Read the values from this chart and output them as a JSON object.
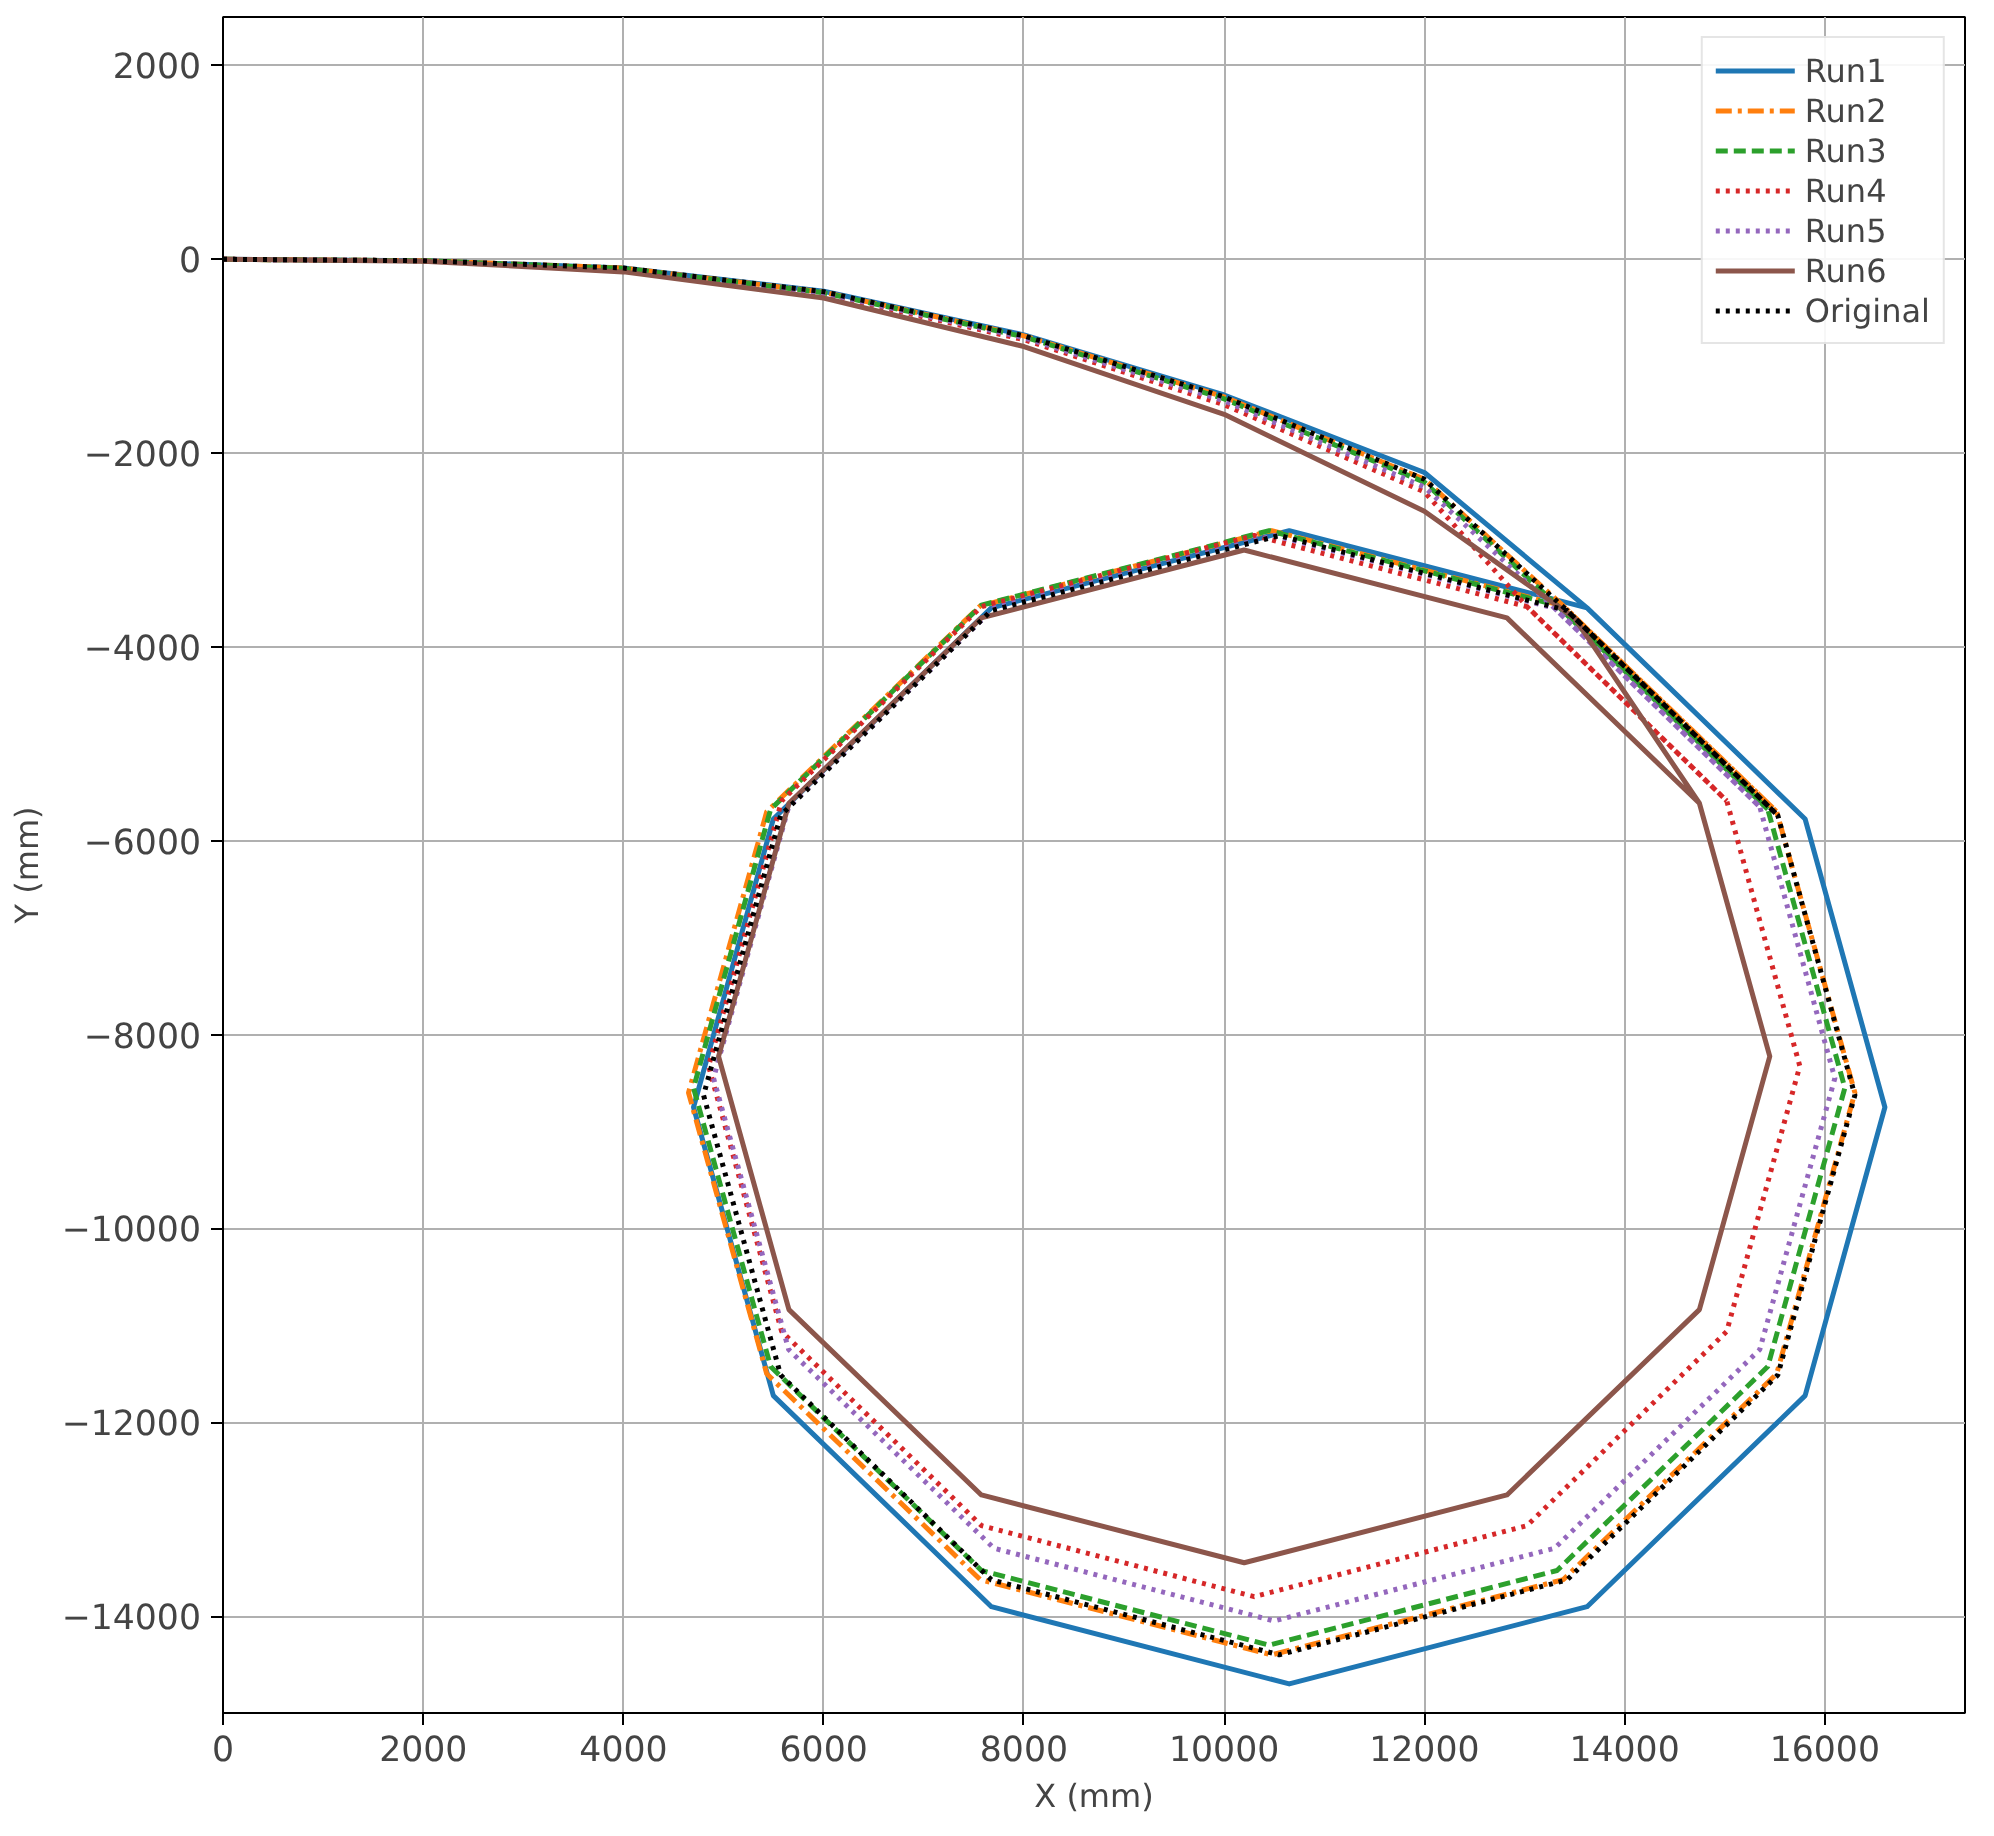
{
  "chart_data": {
    "type": "line",
    "xlabel": "X (mm)",
    "ylabel": "Y (mm)",
    "xlim": [
      0,
      17400
    ],
    "ylim": [
      -15000,
      2500
    ],
    "xticks": [
      0,
      2000,
      4000,
      6000,
      8000,
      10000,
      12000,
      14000,
      16000
    ],
    "yticks": [
      2000,
      0,
      {
        "value": -2000,
        "label": "−2000"
      },
      {
        "value": -4000,
        "label": "−4000"
      },
      {
        "value": -6000,
        "label": "−6000"
      },
      {
        "value": -8000,
        "label": "−8000"
      },
      {
        "value": -10000,
        "label": "−10000"
      },
      {
        "value": -12000,
        "label": "−12000"
      },
      {
        "value": -14000,
        "label": "−14000"
      }
    ],
    "grid": true,
    "legend": "top right",
    "series": [
      {
        "name": "Run1",
        "color": "#1f77b4",
        "line_style": "solid",
        "x": [
          0,
          2000,
          4000,
          6000,
          8000,
          10000,
          12000,
          13625,
          15803,
          16600,
          15803,
          13625,
          10650,
          7675,
          5497,
          4700,
          5497,
          7675,
          10650,
          13625,
          15803
        ],
        "values": [
          0,
          -15,
          -90,
          -330,
          -780,
          -1400,
          -2200,
          -3597,
          -5775,
          -8750,
          -11725,
          -13903,
          -14700,
          -13903,
          -11725,
          -8750,
          -5775,
          -3597,
          -2800,
          -3597,
          -5775
        ]
      },
      {
        "name": "Run2",
        "color": "#ff7f0e",
        "line_style": "dashdot",
        "x": [
          0,
          2000,
          4000,
          6000,
          8000,
          10000,
          12000,
          13388,
          15519,
          16300,
          15519,
          13388,
          10475,
          7563,
          5431,
          4650,
          5431,
          7563,
          10475,
          13388,
          15519
        ],
        "values": [
          0,
          -15,
          -90,
          -340,
          -790,
          -1420,
          -2270,
          -3577,
          -5700,
          -8600,
          -11500,
          -13623,
          -14400,
          -13623,
          -11500,
          -8600,
          -5700,
          -3577,
          -2800,
          -3577,
          -5700
        ]
      },
      {
        "name": "Run3",
        "color": "#2ca02c",
        "line_style": "dashed",
        "x": [
          0,
          2000,
          4000,
          6000,
          8000,
          10000,
          12000,
          13325,
          15430,
          16200,
          15430,
          13325,
          10450,
          7575,
          5470,
          4700,
          5470,
          7575,
          10450,
          13325,
          15430
        ],
        "values": [
          0,
          -15,
          -95,
          -345,
          -800,
          -1440,
          -2300,
          -3570,
          -5675,
          -8550,
          -11425,
          -13530,
          -14300,
          -13530,
          -11425,
          -8550,
          -5675,
          -3570,
          -2800,
          -3570,
          -5675
        ]
      },
      {
        "name": "Run4",
        "color": "#d62728",
        "line_style": "dotted",
        "x": [
          0,
          2000,
          4000,
          6000,
          8000,
          10000,
          12000,
          13025,
          15020,
          15750,
          15020,
          13025,
          10300,
          7575,
          5580,
          4850,
          5580,
          7575,
          10300,
          13025,
          15020
        ],
        "values": [
          0,
          -15,
          -100,
          -360,
          -830,
          -1500,
          -2400,
          -3584,
          -5588,
          -8325,
          -11063,
          -13066,
          -13800,
          -13066,
          -11063,
          -8325,
          -5588,
          -3584,
          -2850,
          -3584,
          -5588
        ]
      },
      {
        "name": "Run5",
        "color": "#9467bd",
        "line_style": "dotted",
        "x": [
          0,
          2000,
          4000,
          6000,
          8000,
          10000,
          12000,
          13300,
          15350,
          16100,
          15350,
          13300,
          10500,
          7700,
          5650,
          4900,
          5650,
          7700,
          10500,
          13300,
          15350
        ],
        "values": [
          0,
          -15,
          -95,
          -350,
          -810,
          -1460,
          -2350,
          -3600,
          -5650,
          -8450,
          -11250,
          -13300,
          -14050,
          -13300,
          -11250,
          -8450,
          -5650,
          -3600,
          -2850,
          -3600,
          -5650
        ]
      },
      {
        "name": "Run6",
        "color": "#8c564b",
        "line_style": "solid",
        "x": [
          0,
          2000,
          4000,
          6000,
          8000,
          10000,
          12000,
          13500,
          14747,
          15450,
          14747,
          12825,
          10200,
          7575,
          5653,
          4950,
          5653,
          7575,
          10200,
          12825,
          14747
        ],
        "values": [
          0,
          -20,
          -130,
          -400,
          -900,
          -1600,
          -2600,
          -3700,
          -5613,
          -8225,
          -10838,
          -12750,
          -13450,
          -12750,
          -10838,
          -8225,
          -5613,
          -3700,
          -3000,
          -3700,
          -5613
        ]
      },
      {
        "name": "Original",
        "color": "#000000",
        "line_style": "dotted",
        "x": [
          0,
          2000,
          4000,
          6000,
          8000,
          10000,
          12000,
          13425,
          15530,
          16300,
          15530,
          13425,
          10550,
          7675,
          5570,
          4800,
          5570,
          7675,
          10550,
          13425,
          15530
        ],
        "values": [
          0,
          -15,
          -90,
          -335,
          -790,
          -1420,
          -2270,
          -3624,
          -5738,
          -8625,
          -11513,
          -13626,
          -14400,
          -13626,
          -11513,
          -8625,
          -5738,
          -3624,
          -2850,
          -3624,
          -5738
        ]
      }
    ]
  }
}
